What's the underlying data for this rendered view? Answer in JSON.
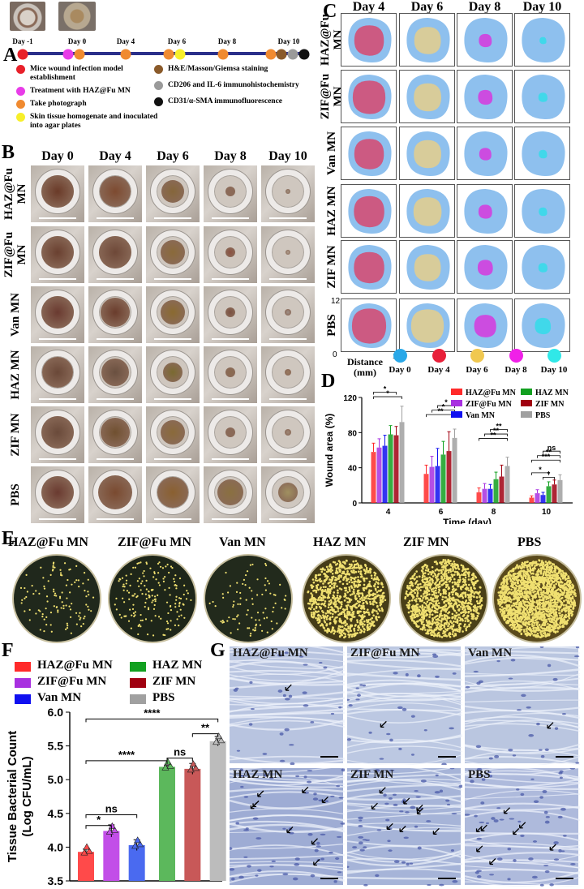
{
  "panels": {
    "A": "A",
    "B": "B",
    "C": "C",
    "D": "D",
    "E": "E",
    "F": "F",
    "G": "G"
  },
  "timeline": {
    "days": [
      "Day -1",
      "Day 0",
      "Day 4",
      "Day 6",
      "Day 8",
      "Day 10"
    ],
    "legend": [
      {
        "color": "#e8202a",
        "text": "Mice wound infection model establishment"
      },
      {
        "color": "#e83ce8",
        "text": "Treatment with HAZ@Fu MN"
      },
      {
        "color": "#f08a30",
        "text": "Take photograph"
      },
      {
        "color": "#f7ef2a",
        "text": "Skin tissue homogenate and inoculated into agar plates"
      },
      {
        "color": "#8a5a2a",
        "text": "H&E/Masson/Giemsa staining"
      },
      {
        "color": "#9a9a9a",
        "text": "CD206 and IL-6 immunohistochemistry"
      },
      {
        "color": "#111111",
        "text": "CD31/α-SMA  immunofluorescence"
      }
    ]
  },
  "groups": [
    "HAZ@Fu MN",
    "ZIF@Fu MN",
    "Van MN",
    "HAZ MN",
    "ZIF MN",
    "PBS"
  ],
  "group_labels_split": [
    [
      "HAZ@Fu",
      "MN"
    ],
    [
      "ZIF@Fu",
      "MN"
    ],
    [
      "Van MN"
    ],
    [
      "HAZ MN"
    ],
    [
      "ZIF MN"
    ],
    [
      "PBS"
    ]
  ],
  "photo_days": [
    "Day 0",
    "Day 4",
    "Day 6",
    "Day 8",
    "Day 10"
  ],
  "trace_days": [
    "Day 4",
    "Day 6",
    "Day 8",
    "Day 10"
  ],
  "trace_axis": {
    "y_top": "12",
    "origin": "0",
    "x_end": "12",
    "label_line1": "Distance",
    "label_line2": "(mm)"
  },
  "trace_legend": [
    {
      "label": "Day 0",
      "color": "#2aa8e8"
    },
    {
      "label": "Day 4",
      "color": "#e8203a"
    },
    {
      "label": "Day 6",
      "color": "#f0c850"
    },
    {
      "label": "Day 8",
      "color": "#f020e8"
    },
    {
      "label": "Day 10",
      "color": "#30e8e8"
    }
  ],
  "trace_colors": {
    "base": "#8ec0ee",
    "d4": "#cc5a82",
    "d6": "#d8cc9a",
    "d8": "#cc4ce0",
    "d10": "#40d8ea"
  },
  "series_colors": [
    "#ff2a2a",
    "#a830e0",
    "#1010f0",
    "#12a020",
    "#a00010",
    "#a0a0a0"
  ],
  "chart_data": [
    {
      "type": "bar",
      "xlabel": "Time (day)",
      "ylabel": "Wound area (%)",
      "ylim": [
        0,
        120
      ],
      "yticks": [
        "0",
        "40",
        "80",
        "120"
      ],
      "categories": [
        "4",
        "6",
        "8",
        "10"
      ],
      "series": [
        {
          "name": "HAZ@Fu MN",
          "values": [
            58,
            33,
            12,
            6
          ],
          "err": [
            10,
            10,
            5,
            2
          ]
        },
        {
          "name": "ZIF@Fu MN",
          "values": [
            63,
            41,
            16,
            11
          ],
          "err": [
            10,
            12,
            6,
            4
          ]
        },
        {
          "name": "Van MN",
          "values": [
            65,
            42,
            16,
            9
          ],
          "err": [
            12,
            20,
            5,
            3
          ]
        },
        {
          "name": "HAZ MN",
          "values": [
            78,
            55,
            27,
            19
          ],
          "err": [
            10,
            15,
            8,
            5
          ]
        },
        {
          "name": "ZIF MN",
          "values": [
            77,
            59,
            30,
            21
          ],
          "err": [
            10,
            22,
            13,
            5
          ]
        },
        {
          "name": "PBS",
          "values": [
            92,
            74,
            42,
            26
          ],
          "err": [
            18,
            10,
            10,
            6
          ]
        }
      ],
      "significance": [
        {
          "label": "*"
        },
        {
          "label": "*"
        },
        {
          "label": "**"
        },
        {
          "label": "*"
        },
        {
          "label": "*"
        },
        {
          "label": "**"
        },
        {
          "label": "**"
        },
        {
          "label": "**"
        },
        {
          "label": "***"
        },
        {
          "label": "**"
        },
        {
          "label": "ns"
        },
        {
          "label": "*"
        },
        {
          "label": "*"
        }
      ]
    },
    {
      "type": "bar",
      "ylabel_line1": "Tissue Bacterial Count",
      "ylabel_line2": "(Log CFU/mL)",
      "ylim": [
        3.5,
        6.0
      ],
      "yticks": [
        "3.5",
        "4.0",
        "4.5",
        "5.0",
        "5.5",
        "6.0"
      ],
      "categories": [
        "HAZ@Fu MN",
        "ZIF@Fu MN",
        "Van MN",
        "HAZ MN",
        "ZIF MN",
        "PBS"
      ],
      "values": [
        3.93,
        4.24,
        4.03,
        5.19,
        5.16,
        5.57
      ],
      "err": [
        0.04,
        0.09,
        0.08,
        0.02,
        0.08,
        0.07
      ],
      "colors": [
        "#ff4a4a",
        "#c24ee8",
        "#4a6af0",
        "#5cb85c",
        "#c85858",
        "#bcbcbc"
      ],
      "significance": [
        {
          "label": "*"
        },
        {
          "label": "ns"
        },
        {
          "label": "****"
        },
        {
          "label": "****"
        },
        {
          "label": "ns"
        },
        {
          "label": "**"
        }
      ]
    }
  ],
  "histology": {
    "labels": [
      "HAZ@Fu MN",
      "ZIF@Fu MN",
      "Van MN",
      "HAZ MN",
      "ZIF MN",
      "PBS"
    ]
  }
}
